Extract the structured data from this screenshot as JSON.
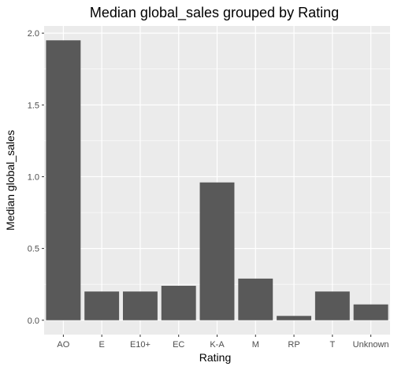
{
  "chart_data": {
    "type": "bar",
    "title": "Median global_sales grouped by Rating",
    "xlabel": "Rating",
    "ylabel": "Median global_sales",
    "categories": [
      "AO",
      "E",
      "E10+",
      "EC",
      "K-A",
      "M",
      "RP",
      "T",
      "Unknown"
    ],
    "values": [
      1.95,
      0.2,
      0.2,
      0.24,
      0.96,
      0.29,
      0.03,
      0.2,
      0.11
    ],
    "ylim": [
      -0.1,
      2.05
    ],
    "yticks": [
      0.0,
      0.5,
      1.0,
      1.5,
      2.0
    ],
    "ytick_labels": [
      "0.0",
      "0.5",
      "1.0",
      "1.5",
      "2.0"
    ],
    "grid": true,
    "legend": "none",
    "colors": {
      "bar": "#595959",
      "panel": "#ebebeb",
      "grid_major": "#ffffff",
      "tick_label": "#4d4d4d"
    }
  }
}
